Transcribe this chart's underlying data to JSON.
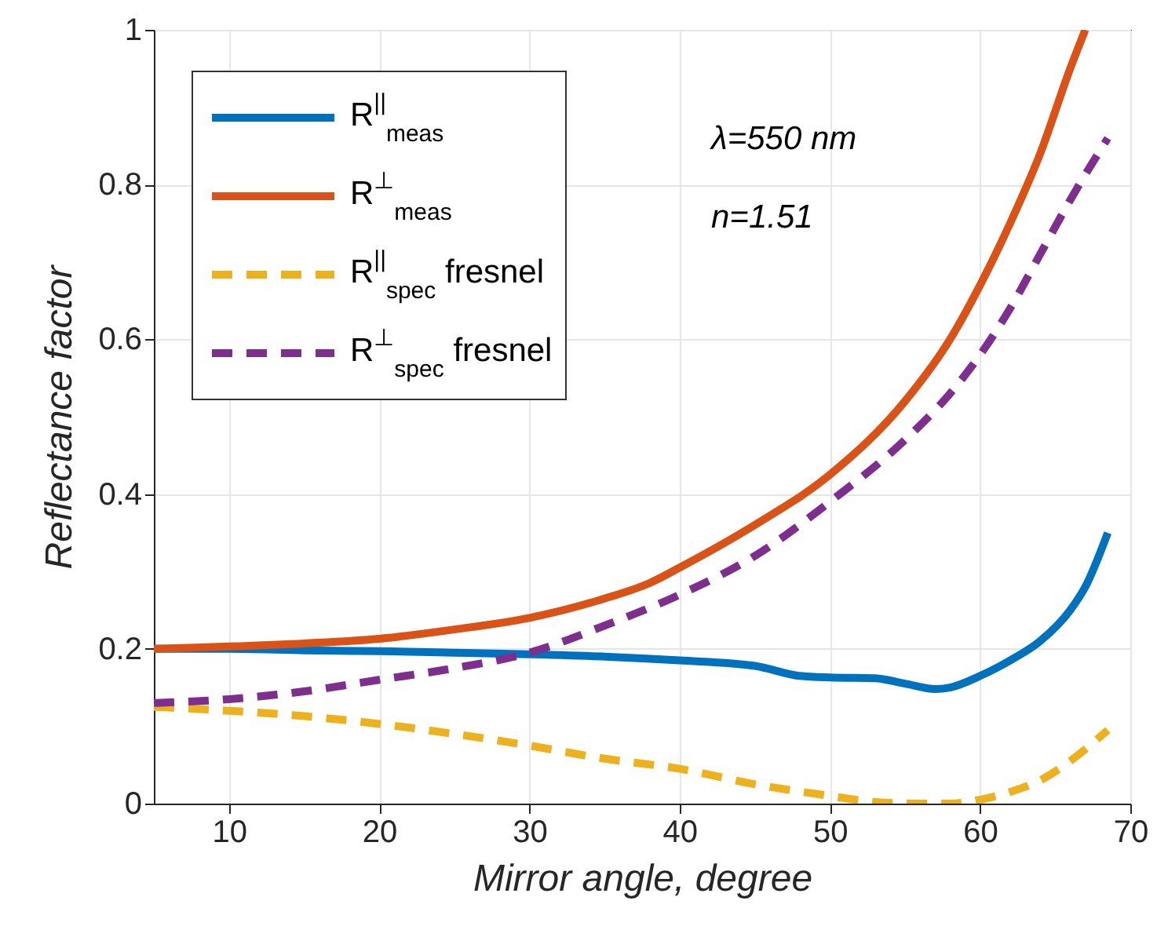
{
  "chart_data": {
    "type": "line",
    "xlabel": "Mirror angle, degree",
    "ylabel": "Reflectance factor",
    "xlim": [
      5,
      70
    ],
    "xticks": [
      10,
      20,
      30,
      40,
      50,
      60,
      70
    ],
    "ylim": [
      0,
      1
    ],
    "yticks": [
      0,
      0.2,
      0.4,
      0.6,
      0.8,
      1
    ],
    "grid": true,
    "legend": "top left",
    "annotations": [
      "λ=550 nm",
      "n=1.51"
    ],
    "series": [
      {
        "name": "R$^{||}$$_{meas}$",
        "color": "#0072bd",
        "line_style": "solid",
        "x": [
          5,
          10,
          15,
          20,
          25,
          30,
          35,
          40,
          45,
          48,
          50,
          53,
          55,
          57,
          58,
          60,
          62,
          64,
          66,
          67,
          68.5
        ],
        "values": [
          0.2,
          0.2,
          0.198,
          0.197,
          0.195,
          0.193,
          0.19,
          0.185,
          0.178,
          0.165,
          0.163,
          0.162,
          0.155,
          0.148,
          0.15,
          0.165,
          0.185,
          0.21,
          0.25,
          0.28,
          0.35
        ]
      },
      {
        "name": "R$^{⊥}$$_{meas}$",
        "color": "#d95319",
        "line_style": "solid",
        "x": [
          5,
          10,
          15,
          20,
          25,
          30,
          35,
          38,
          40,
          45,
          50,
          55,
          58,
          60,
          62,
          64,
          66,
          67
        ],
        "values": [
          0.2,
          0.203,
          0.207,
          0.213,
          0.225,
          0.24,
          0.265,
          0.285,
          0.305,
          0.36,
          0.425,
          0.52,
          0.6,
          0.67,
          0.75,
          0.84,
          0.95,
          1.0
        ]
      },
      {
        "name": "R$^{||}$$_{spec}$ fresnel",
        "color": "#edb120",
        "line_style": "dashed",
        "x": [
          5,
          10,
          15,
          20,
          25,
          30,
          35,
          40,
          45,
          50,
          53,
          56,
          58,
          60,
          62,
          64,
          66,
          68.5
        ],
        "values": [
          0.125,
          0.12,
          0.113,
          0.103,
          0.09,
          0.075,
          0.058,
          0.045,
          0.025,
          0.01,
          0.002,
          0,
          0,
          0.005,
          0.015,
          0.03,
          0.055,
          0.095
        ]
      },
      {
        "name": "R$^{⊥}$$_{spec}$ fresnel",
        "color": "#7e2f8e",
        "line_style": "dashed",
        "x": [
          5,
          10,
          15,
          20,
          25,
          30,
          35,
          40,
          45,
          50,
          55,
          58,
          60,
          62,
          64,
          66,
          68.5
        ],
        "values": [
          0.13,
          0.135,
          0.145,
          0.16,
          0.175,
          0.195,
          0.23,
          0.27,
          0.32,
          0.39,
          0.47,
          0.53,
          0.58,
          0.64,
          0.71,
          0.78,
          0.86
        ]
      }
    ]
  }
}
